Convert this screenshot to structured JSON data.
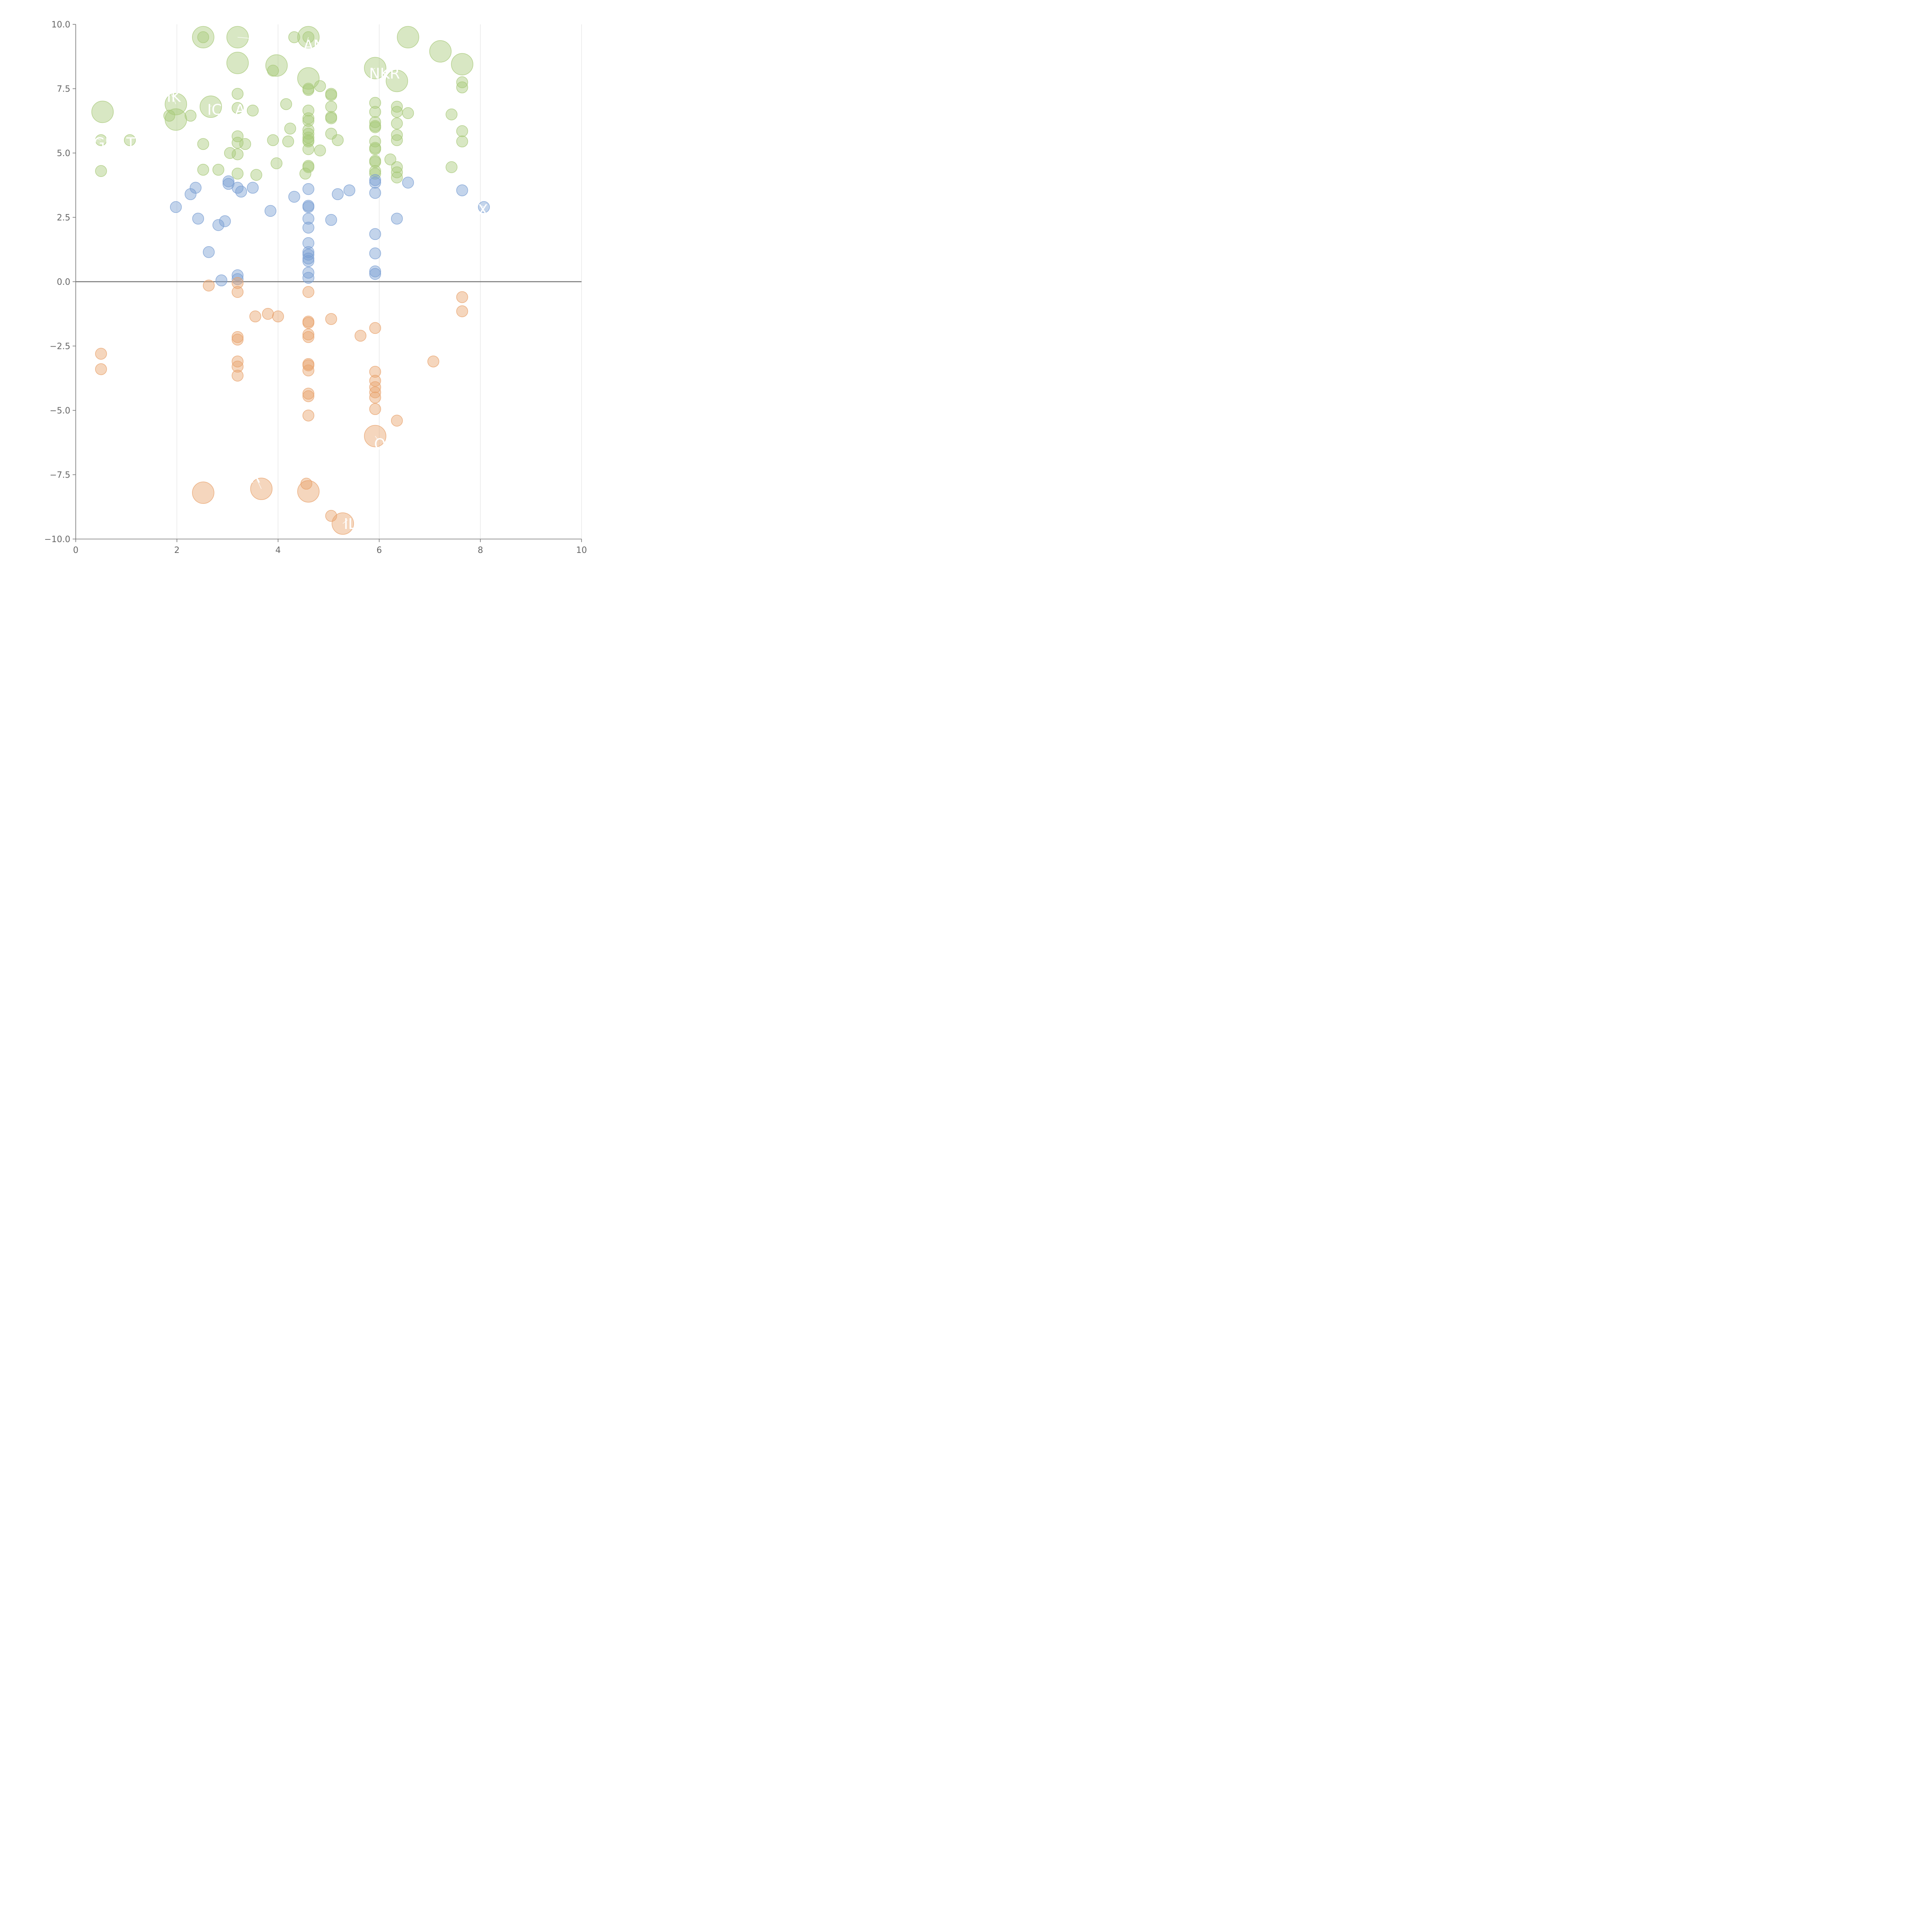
{
  "chart_data": {
    "type": "scatter",
    "title": "",
    "xlabel": "",
    "ylabel": "",
    "xlim": [
      0,
      10
    ],
    "ylim": [
      -10,
      10
    ],
    "x_ticks": [
      "0",
      "2",
      "4",
      "6",
      "8",
      "10"
    ],
    "x_tick_values": [
      0,
      2,
      4,
      6,
      8,
      10
    ],
    "y_ticks": [
      "10.0",
      "7.5",
      "5.0",
      "2.5",
      "0.0",
      "−2.5",
      "−5.0",
      "−7.5",
      "−10.0"
    ],
    "y_tick_values": [
      10,
      7.5,
      5,
      2.5,
      0,
      -2.5,
      -5,
      -7.5,
      -10
    ],
    "grid": "vertical lines at x ticks",
    "reference_line_y": 0,
    "series": [
      {
        "color": "#a9c97b",
        "points": [
          {
            "x": 2.52,
            "y": 9.5,
            "size": "large"
          },
          {
            "x": 3.2,
            "y": 9.5,
            "size": "large"
          },
          {
            "x": 4.6,
            "y": 9.5,
            "size": "large"
          },
          {
            "x": 6.57,
            "y": 9.5,
            "size": "large"
          },
          {
            "x": 7.21,
            "y": 8.95,
            "size": "large"
          },
          {
            "x": 3.2,
            "y": 8.5,
            "size": "large"
          },
          {
            "x": 3.97,
            "y": 8.4,
            "size": "large"
          },
          {
            "x": 7.64,
            "y": 8.45,
            "size": "large"
          },
          {
            "x": 5.92,
            "y": 8.3,
            "size": "large"
          },
          {
            "x": 4.6,
            "y": 7.9,
            "size": "large"
          },
          {
            "x": 6.35,
            "y": 7.8,
            "size": "large"
          },
          {
            "x": 1.98,
            "y": 6.9,
            "size": "large"
          },
          {
            "x": 2.67,
            "y": 6.8,
            "size": "large"
          },
          {
            "x": 0.53,
            "y": 6.6,
            "size": "large"
          },
          {
            "x": 1.98,
            "y": 6.3,
            "size": "large"
          },
          {
            "x": 2.52,
            "y": 9.5,
            "size": "small"
          },
          {
            "x": 4.32,
            "y": 9.5,
            "size": "small"
          },
          {
            "x": 4.6,
            "y": 9.5,
            "size": "small"
          },
          {
            "x": 3.9,
            "y": 8.2,
            "size": "small"
          },
          {
            "x": 4.6,
            "y": 7.5,
            "size": "small"
          },
          {
            "x": 4.6,
            "y": 7.45,
            "size": "small"
          },
          {
            "x": 4.83,
            "y": 7.6,
            "size": "small"
          },
          {
            "x": 5.05,
            "y": 7.3,
            "size": "small"
          },
          {
            "x": 5.05,
            "y": 7.25,
            "size": "small"
          },
          {
            "x": 3.2,
            "y": 7.3,
            "size": "small"
          },
          {
            "x": 7.64,
            "y": 7.75,
            "size": "small"
          },
          {
            "x": 7.64,
            "y": 7.55,
            "size": "small"
          },
          {
            "x": 4.16,
            "y": 6.9,
            "size": "small"
          },
          {
            "x": 5.92,
            "y": 6.95,
            "size": "small"
          },
          {
            "x": 6.35,
            "y": 6.8,
            "size": "small"
          },
          {
            "x": 5.05,
            "y": 6.8,
            "size": "small"
          },
          {
            "x": 3.2,
            "y": 6.75,
            "size": "small"
          },
          {
            "x": 4.6,
            "y": 6.65,
            "size": "small"
          },
          {
            "x": 3.5,
            "y": 6.65,
            "size": "small"
          },
          {
            "x": 5.92,
            "y": 6.6,
            "size": "small"
          },
          {
            "x": 6.35,
            "y": 6.6,
            "size": "small"
          },
          {
            "x": 6.57,
            "y": 6.55,
            "size": "small"
          },
          {
            "x": 1.85,
            "y": 6.45,
            "size": "small"
          },
          {
            "x": 2.27,
            "y": 6.45,
            "size": "small"
          },
          {
            "x": 7.43,
            "y": 6.5,
            "size": "small"
          },
          {
            "x": 5.05,
            "y": 6.4,
            "size": "small"
          },
          {
            "x": 5.05,
            "y": 6.35,
            "size": "small"
          },
          {
            "x": 4.6,
            "y": 6.35,
            "size": "small"
          },
          {
            "x": 4.6,
            "y": 6.25,
            "size": "small"
          },
          {
            "x": 5.92,
            "y": 6.2,
            "size": "small"
          },
          {
            "x": 6.35,
            "y": 6.15,
            "size": "small"
          },
          {
            "x": 5.92,
            "y": 6.05,
            "size": "small"
          },
          {
            "x": 5.92,
            "y": 6.0,
            "size": "small"
          },
          {
            "x": 4.24,
            "y": 5.95,
            "size": "small"
          },
          {
            "x": 4.6,
            "y": 5.9,
            "size": "small"
          },
          {
            "x": 7.64,
            "y": 5.85,
            "size": "small"
          },
          {
            "x": 5.05,
            "y": 5.75,
            "size": "small"
          },
          {
            "x": 4.6,
            "y": 5.75,
            "size": "small"
          },
          {
            "x": 6.35,
            "y": 5.7,
            "size": "small"
          },
          {
            "x": 3.2,
            "y": 5.65,
            "size": "small"
          },
          {
            "x": 4.6,
            "y": 5.6,
            "size": "small"
          },
          {
            "x": 5.18,
            "y": 5.5,
            "size": "small"
          },
          {
            "x": 4.6,
            "y": 5.5,
            "size": "small"
          },
          {
            "x": 5.92,
            "y": 5.45,
            "size": "small"
          },
          {
            "x": 3.9,
            "y": 5.5,
            "size": "small"
          },
          {
            "x": 4.6,
            "y": 5.45,
            "size": "small"
          },
          {
            "x": 6.35,
            "y": 5.5,
            "size": "small"
          },
          {
            "x": 7.64,
            "y": 5.45,
            "size": "small"
          },
          {
            "x": 1.07,
            "y": 5.5,
            "size": "small"
          },
          {
            "x": 0.5,
            "y": 5.5,
            "size": "small"
          },
          {
            "x": 4.2,
            "y": 5.45,
            "size": "small"
          },
          {
            "x": 3.2,
            "y": 5.4,
            "size": "small"
          },
          {
            "x": 3.35,
            "y": 5.35,
            "size": "small"
          },
          {
            "x": 2.52,
            "y": 5.35,
            "size": "small"
          },
          {
            "x": 5.92,
            "y": 5.2,
            "size": "small"
          },
          {
            "x": 5.92,
            "y": 5.15,
            "size": "small"
          },
          {
            "x": 4.6,
            "y": 5.15,
            "size": "small"
          },
          {
            "x": 4.83,
            "y": 5.1,
            "size": "small"
          },
          {
            "x": 3.05,
            "y": 5.0,
            "size": "small"
          },
          {
            "x": 3.2,
            "y": 4.95,
            "size": "small"
          },
          {
            "x": 6.22,
            "y": 4.75,
            "size": "small"
          },
          {
            "x": 5.92,
            "y": 4.7,
            "size": "small"
          },
          {
            "x": 5.92,
            "y": 4.65,
            "size": "small"
          },
          {
            "x": 3.97,
            "y": 4.6,
            "size": "small"
          },
          {
            "x": 4.6,
            "y": 4.5,
            "size": "small"
          },
          {
            "x": 4.6,
            "y": 4.45,
            "size": "small"
          },
          {
            "x": 6.35,
            "y": 4.45,
            "size": "small"
          },
          {
            "x": 7.43,
            "y": 4.45,
            "size": "small"
          },
          {
            "x": 2.52,
            "y": 4.35,
            "size": "small"
          },
          {
            "x": 2.82,
            "y": 4.35,
            "size": "small"
          },
          {
            "x": 5.92,
            "y": 4.3,
            "size": "small"
          },
          {
            "x": 0.5,
            "y": 4.3,
            "size": "small"
          },
          {
            "x": 6.35,
            "y": 4.25,
            "size": "small"
          },
          {
            "x": 3.2,
            "y": 4.2,
            "size": "small"
          },
          {
            "x": 4.54,
            "y": 4.2,
            "size": "small"
          },
          {
            "x": 5.92,
            "y": 4.2,
            "size": "small"
          },
          {
            "x": 3.57,
            "y": 4.15,
            "size": "small"
          },
          {
            "x": 6.35,
            "y": 4.05,
            "size": "small"
          }
        ]
      },
      {
        "color": "#7b9fd3",
        "points": [
          {
            "x": 3.02,
            "y": 3.9
          },
          {
            "x": 3.02,
            "y": 3.8
          },
          {
            "x": 5.92,
            "y": 3.95
          },
          {
            "x": 5.92,
            "y": 3.85
          },
          {
            "x": 6.57,
            "y": 3.85
          },
          {
            "x": 2.37,
            "y": 3.65
          },
          {
            "x": 3.2,
            "y": 3.65
          },
          {
            "x": 3.5,
            "y": 3.65
          },
          {
            "x": 4.6,
            "y": 3.6
          },
          {
            "x": 5.41,
            "y": 3.55
          },
          {
            "x": 7.64,
            "y": 3.55
          },
          {
            "x": 3.27,
            "y": 3.5
          },
          {
            "x": 5.92,
            "y": 3.45
          },
          {
            "x": 2.27,
            "y": 3.4
          },
          {
            "x": 5.18,
            "y": 3.4
          },
          {
            "x": 4.32,
            "y": 3.3
          },
          {
            "x": 4.6,
            "y": 2.95
          },
          {
            "x": 4.6,
            "y": 2.9
          },
          {
            "x": 1.98,
            "y": 2.9
          },
          {
            "x": 8.07,
            "y": 2.9
          },
          {
            "x": 3.85,
            "y": 2.75
          },
          {
            "x": 2.42,
            "y": 2.45
          },
          {
            "x": 4.6,
            "y": 2.45
          },
          {
            "x": 6.35,
            "y": 2.45
          },
          {
            "x": 5.05,
            "y": 2.4
          },
          {
            "x": 2.95,
            "y": 2.35
          },
          {
            "x": 2.82,
            "y": 2.2
          },
          {
            "x": 4.6,
            "y": 2.1
          },
          {
            "x": 5.92,
            "y": 1.85
          },
          {
            "x": 4.6,
            "y": 1.5
          },
          {
            "x": 4.6,
            "y": 1.15
          },
          {
            "x": 2.63,
            "y": 1.15
          },
          {
            "x": 5.92,
            "y": 1.1
          },
          {
            "x": 4.6,
            "y": 1.05
          },
          {
            "x": 4.6,
            "y": 0.9
          },
          {
            "x": 4.6,
            "y": 0.8
          },
          {
            "x": 5.92,
            "y": 0.4
          },
          {
            "x": 4.6,
            "y": 0.35
          },
          {
            "x": 5.92,
            "y": 0.3
          },
          {
            "x": 3.2,
            "y": 0.25
          },
          {
            "x": 4.6,
            "y": 0.15
          },
          {
            "x": 3.2,
            "y": 0.1
          },
          {
            "x": 2.88,
            "y": 0.05
          }
        ]
      },
      {
        "color": "#e8a36d",
        "points": [
          {
            "x": 2.63,
            "y": -0.15,
            "size": "small"
          },
          {
            "x": 3.2,
            "y": -0.05,
            "size": "small"
          },
          {
            "x": 3.2,
            "y": -0.4,
            "size": "small"
          },
          {
            "x": 4.6,
            "y": -0.4,
            "size": "small"
          },
          {
            "x": 7.64,
            "y": -0.6,
            "size": "small"
          },
          {
            "x": 7.64,
            "y": -1.15,
            "size": "small"
          },
          {
            "x": 3.8,
            "y": -1.25,
            "size": "small"
          },
          {
            "x": 3.55,
            "y": -1.35,
            "size": "small"
          },
          {
            "x": 4.0,
            "y": -1.35,
            "size": "small"
          },
          {
            "x": 5.05,
            "y": -1.45,
            "size": "small"
          },
          {
            "x": 4.6,
            "y": -1.55,
            "size": "small"
          },
          {
            "x": 4.6,
            "y": -1.6,
            "size": "small"
          },
          {
            "x": 5.92,
            "y": -1.8,
            "size": "small"
          },
          {
            "x": 4.6,
            "y": -2.05,
            "size": "small"
          },
          {
            "x": 5.63,
            "y": -2.1,
            "size": "small"
          },
          {
            "x": 4.6,
            "y": -2.15,
            "size": "small"
          },
          {
            "x": 3.2,
            "y": -2.15,
            "size": "small"
          },
          {
            "x": 3.2,
            "y": -2.25,
            "size": "small"
          },
          {
            "x": 0.5,
            "y": -2.8,
            "size": "small"
          },
          {
            "x": 3.2,
            "y": -3.1,
            "size": "small"
          },
          {
            "x": 7.07,
            "y": -3.1,
            "size": "small"
          },
          {
            "x": 4.6,
            "y": -3.2,
            "size": "small"
          },
          {
            "x": 4.6,
            "y": -3.25,
            "size": "small"
          },
          {
            "x": 3.2,
            "y": -3.3,
            "size": "small"
          },
          {
            "x": 0.5,
            "y": -3.4,
            "size": "small"
          },
          {
            "x": 4.6,
            "y": -3.45,
            "size": "small"
          },
          {
            "x": 5.92,
            "y": -3.5,
            "size": "small"
          },
          {
            "x": 3.2,
            "y": -3.65,
            "size": "small"
          },
          {
            "x": 5.92,
            "y": -3.85,
            "size": "small"
          },
          {
            "x": 5.92,
            "y": -4.1,
            "size": "small"
          },
          {
            "x": 5.92,
            "y": -4.3,
            "size": "small"
          },
          {
            "x": 4.6,
            "y": -4.35,
            "size": "small"
          },
          {
            "x": 4.6,
            "y": -4.45,
            "size": "small"
          },
          {
            "x": 5.92,
            "y": -4.5,
            "size": "small"
          },
          {
            "x": 5.92,
            "y": -4.95,
            "size": "small"
          },
          {
            "x": 4.6,
            "y": -5.2,
            "size": "small"
          },
          {
            "x": 6.35,
            "y": -5.4,
            "size": "small"
          },
          {
            "x": 5.92,
            "y": -6.0,
            "size": "large"
          },
          {
            "x": 4.56,
            "y": -7.85,
            "size": "small"
          },
          {
            "x": 3.67,
            "y": -8.05,
            "size": "large"
          },
          {
            "x": 4.6,
            "y": -8.15,
            "size": "large"
          },
          {
            "x": 2.52,
            "y": -8.2,
            "size": "large"
          },
          {
            "x": 5.05,
            "y": -9.1,
            "size": "small"
          },
          {
            "x": 5.28,
            "y": -9.4,
            "size": "large"
          }
        ]
      }
    ],
    "labels": [
      {
        "text": "F",
        "x": 3.4,
        "y": 9.3,
        "ax": 3.2,
        "ay": 9.5
      },
      {
        "text": "AN",
        "x": 4.5,
        "y": 9.2,
        "ax": 4.6,
        "ay": 9.5
      },
      {
        "text": "NKR",
        "x": 5.8,
        "y": 8.1,
        "ax": 5.92,
        "ay": 8.3
      },
      {
        "text": "IK",
        "x": 1.8,
        "y": 7.2,
        "ax": 1.98,
        "ay": 6.9
      },
      {
        "text": "IC",
        "x": 2.6,
        "y": 6.7,
        "ax": 2.67,
        "ay": 6.8
      },
      {
        "text": "A",
        "x": 3.15,
        "y": 6.7,
        "ax": 3.2,
        "ay": 6.75
      },
      {
        "text": "GI",
        "x": 0.35,
        "y": 5.4,
        "ax": 0.5,
        "ay": 5.5
      },
      {
        "text": "T",
        "x": 1.0,
        "y": 5.4,
        "ax": 1.07,
        "ay": 5.5
      },
      {
        "text": "X",
        "x": 7.95,
        "y": 2.8,
        "ax": 8.07,
        "ay": 2.9
      },
      {
        "text": "O",
        "x": 5.9,
        "y": -6.3,
        "ax": 5.92,
        "ay": -6.0
      },
      {
        "text": "R",
        "x": 3.45,
        "y": -7.6,
        "ax": 3.67,
        "ay": -8.05
      },
      {
        "text": "IL",
        "x": 5.3,
        "y": -9.4,
        "ax": 5.28,
        "ay": -9.4
      }
    ]
  }
}
